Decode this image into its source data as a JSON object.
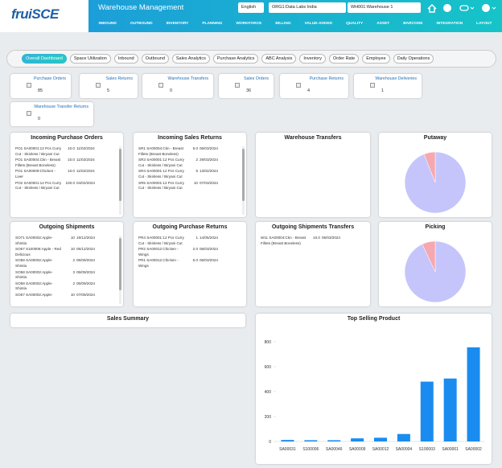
{
  "header": {
    "logo": "fruiSCE",
    "title": "Warehouse Management",
    "language": "English",
    "organization": "ORG1:Data Labs India",
    "warehouse": "WH001:Warehouse 1"
  },
  "nav": [
    "INBOUND",
    "OUTBOUND",
    "INVENTORY",
    "PLANNING",
    "WORKFORCE",
    "BILLING",
    "VALUE-ADDED",
    "QUALITY",
    "ASSET",
    "BARCODE",
    "INTEGRATION",
    "LAYOUT"
  ],
  "tabs": [
    "Overall Dashboard",
    "Space Utilization",
    "Inbound",
    "Outbound",
    "Sales Analytics",
    "Purchase Analytics",
    "ABC Analysis",
    "Inventory",
    "Order Rate",
    "Employee",
    "Daily Operations"
  ],
  "kpis": [
    {
      "label": "Purchase Orders",
      "value": 85
    },
    {
      "label": "Sales Returns",
      "value": 5
    },
    {
      "label": "Warehouse Transfers",
      "value": 0
    },
    {
      "label": "Sales Orders",
      "value": 36
    },
    {
      "label": "Purchase Returns",
      "value": 4
    },
    {
      "label": "Warehouse Deliveries",
      "value": 1
    },
    {
      "label": "Warehouse Transfer Returns",
      "value": 0
    }
  ],
  "panels": [
    {
      "title": "Incoming Purchase Orders",
      "rows": [
        {
          "item": "PO1 SA00001:12 Pcs Curry Cut - Skinless / Biryani Cut",
          "qty": "10.0",
          "date": "11/02/2024"
        },
        {
          "item": "PO1 SA00004:Ckn - Breast Fillets (Breast Boneless)",
          "qty": "10.0",
          "date": "11/02/2024"
        },
        {
          "item": "PO1 SA00009:Chicken - Liver",
          "qty": "10.0",
          "date": "11/02/2024"
        },
        {
          "item": "PO2 SA00001:12 Pcs Curry Cut - Skinless / Biryani Cut",
          "qty": "100.0",
          "date": "04/02/2024"
        }
      ]
    },
    {
      "title": "Incoming Sales Returns",
      "rows": [
        {
          "item": "SR1 SA00004:Ckn - Breast Fillets (Breast Boneless)",
          "qty": "5.0",
          "date": "06/03/2024"
        },
        {
          "item": "SR3 SA00001:12 Pcs Curry Cut - Skinless / Biryani Cut",
          "qty": "2",
          "date": "29/03/2024"
        },
        {
          "item": "SR4 SA00001:12 Pcs Curry Cut - Skinless / Biryani Cut",
          "qty": "5",
          "date": "13/02/2024"
        },
        {
          "item": "SR5 SA00001:12 Pcs Curry Cut - Skinless / Biryani Cut",
          "qty": "10",
          "date": "07/03/2024"
        }
      ]
    },
    {
      "title": "Warehouse Transfers",
      "rows": []
    },
    {
      "title": "Putaway",
      "chart": {
        "type": "pie",
        "values": [
          94,
          6
        ],
        "colors": [
          "#c5c5fb",
          "#f5a8b0"
        ]
      }
    },
    {
      "title": "Outgoing Shipments",
      "rows": [
        {
          "item": "SO71 SA00002:Apple-Shimla",
          "qty": "10",
          "date": "19/12/2024"
        },
        {
          "item": "SO67 S100006:Apple - Red Delicious",
          "qty": "10",
          "date": "05/12/2024"
        },
        {
          "item": "SO58 SA00002:Apple-Shimla",
          "qty": "2",
          "date": "05/09/2024"
        },
        {
          "item": "SO58 SA00002:Apple-Shimla",
          "qty": "3",
          "date": "05/09/2024"
        },
        {
          "item": "SO58 SA00002:Apple-Shimla",
          "qty": "2",
          "date": "05/09/2024"
        },
        {
          "item": "SO57 SA00002:Apple-",
          "qty": "10",
          "date": "07/09/2024"
        }
      ]
    },
    {
      "title": "Outgoing Purchase Returns",
      "rows": [
        {
          "item": "PR4 SA00001:12 Pcs Curry Cut - Skinless / Biryani Cut",
          "qty": "1",
          "date": "14/05/2024"
        },
        {
          "item": "PR2 SA00012:Chicken - Wings",
          "qty": "2.0",
          "date": "06/03/2024"
        },
        {
          "item": "PR1 SA00012:Chicken - Wings",
          "qty": "5.0",
          "date": "06/03/2024"
        }
      ]
    },
    {
      "title": "Outgoing Shipments Transfers",
      "rows": [
        {
          "item": "W11 SA00004:Ckn - Breast Fillets (Breast Boneless)",
          "qty": "10.0",
          "date": "06/03/2024"
        }
      ]
    },
    {
      "title": "Picking",
      "chart": {
        "type": "pie",
        "values": [
          93,
          7
        ],
        "colors": [
          "#c5c5fb",
          "#f5a8b0"
        ]
      }
    },
    {
      "title": "Sales Summary",
      "rows": []
    },
    {
      "title": "Top Selling Product",
      "chart": {
        "type": "bar",
        "categories": [
          "SA00031",
          "S100006",
          "SA00046",
          "SA00009",
          "SA00012",
          "SA00004",
          "S100003",
          "SA00001",
          "SA00002"
        ],
        "values": [
          12,
          10,
          10,
          25,
          30,
          60,
          480,
          505,
          755
        ],
        "color": "#1a8cf0",
        "ylim": [
          0,
          880
        ],
        "yticks": [
          0,
          200,
          400,
          600,
          800
        ]
      }
    }
  ]
}
